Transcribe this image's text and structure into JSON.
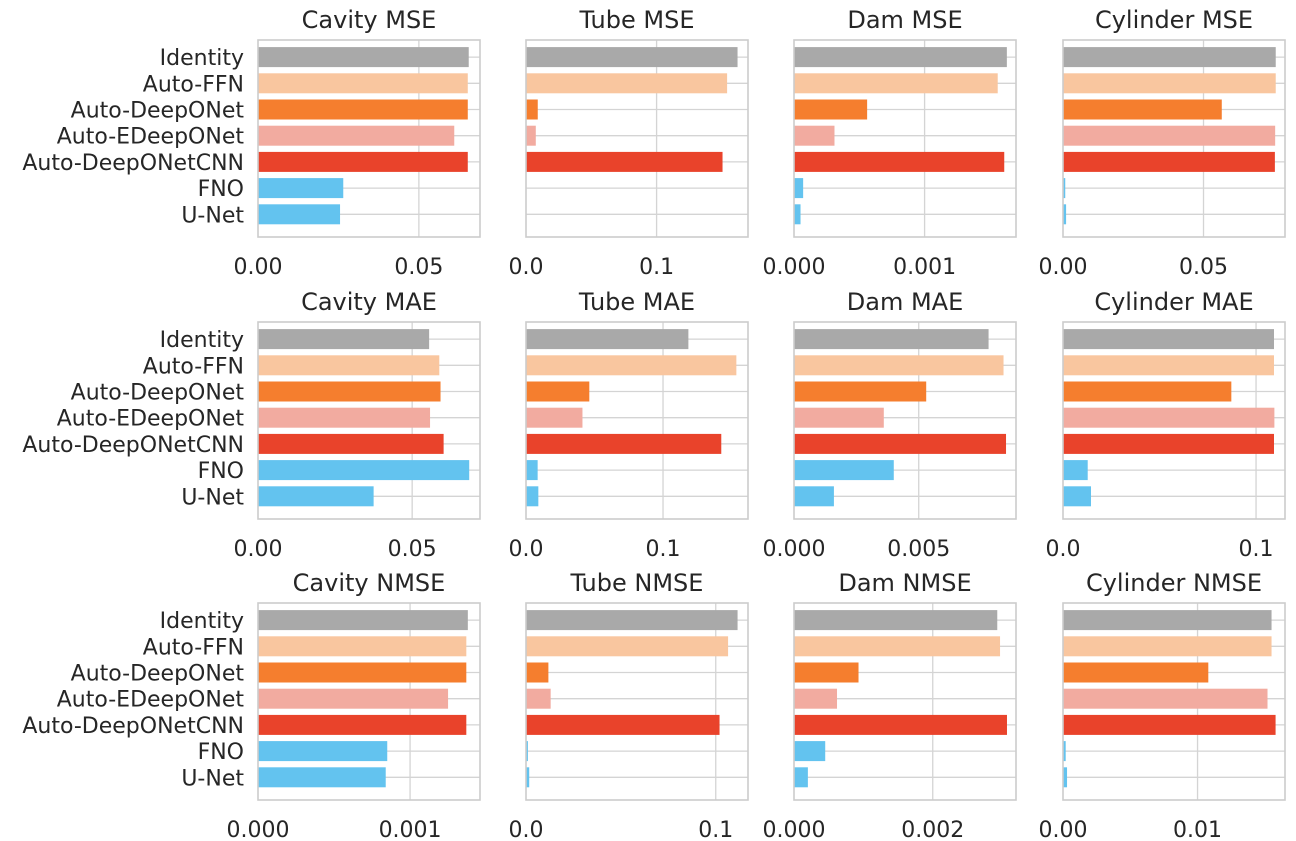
{
  "colors": {
    "Identity": "#a9a9a9",
    "Auto-FFN": "#f9c69f",
    "Auto-DeepONet": "#f57e2e",
    "Auto-EDeepONet": "#f2aba0",
    "Auto-DeepONetCNN": "#e9432b",
    "FNO": "#63c3ef",
    "U-Net": "#63c3ef"
  },
  "chart_data": [
    {
      "type": "bar",
      "orientation": "horizontal",
      "title": "Cavity MSE",
      "categories": [
        "Identity",
        "Auto-FFN",
        "Auto-DeepONet",
        "Auto-EDeepONet",
        "Auto-DeepONetCNN",
        "FNO",
        "U-Net"
      ],
      "values": [
        0.0655,
        0.0652,
        0.0652,
        0.061,
        0.0652,
        0.0265,
        0.0255
      ],
      "xlim": [
        0,
        0.069
      ],
      "xticks": [
        0,
        0.05
      ],
      "xticklabels": [
        "0.00",
        "0.05"
      ],
      "grid": true
    },
    {
      "type": "bar",
      "orientation": "horizontal",
      "title": "Tube MSE",
      "categories": [
        "Identity",
        "Auto-FFN",
        "Auto-DeepONet",
        "Auto-EDeepONet",
        "Auto-DeepONetCNN",
        "FNO",
        "U-Net"
      ],
      "values": [
        0.162,
        0.154,
        0.009,
        0.0075,
        0.1505,
        0,
        0
      ],
      "xlim": [
        0,
        0.17
      ],
      "xticks": [
        0,
        0.1
      ],
      "xticklabels": [
        "0.0",
        "0.1"
      ],
      "grid": true
    },
    {
      "type": "bar",
      "orientation": "horizontal",
      "title": "Dam MSE",
      "categories": [
        "Identity",
        "Auto-FFN",
        "Auto-DeepONet",
        "Auto-EDeepONet",
        "Auto-DeepONetCNN",
        "FNO",
        "U-Net"
      ],
      "values": [
        0.00163,
        0.00156,
        0.00056,
        0.00031,
        0.00161,
        7e-05,
        5e-05
      ],
      "xlim": [
        0,
        0.0017
      ],
      "xticks": [
        0,
        0.001
      ],
      "xticklabels": [
        "0.000",
        "0.001"
      ],
      "grid": true
    },
    {
      "type": "bar",
      "orientation": "horizontal",
      "title": "Cylinder MSE",
      "categories": [
        "Identity",
        "Auto-FFN",
        "Auto-DeepONet",
        "Auto-EDeepONet",
        "Auto-DeepONetCNN",
        "FNO",
        "U-Net"
      ],
      "values": [
        0.0757,
        0.0757,
        0.0565,
        0.0755,
        0.0754,
        0.0008,
        0.0011
      ],
      "xlim": [
        0,
        0.079
      ],
      "xticks": [
        0,
        0.05
      ],
      "xticklabels": [
        "0.00",
        "0.05"
      ],
      "grid": true
    },
    {
      "type": "bar",
      "orientation": "horizontal",
      "title": "Cavity MAE",
      "categories": [
        "Identity",
        "Auto-FFN",
        "Auto-DeepONet",
        "Auto-EDeepONet",
        "Auto-DeepONetCNN",
        "FNO",
        "U-Net"
      ],
      "values": [
        0.0555,
        0.0588,
        0.0592,
        0.0558,
        0.0602,
        0.0685,
        0.0375
      ],
      "xlim": [
        0,
        0.072
      ],
      "xticks": [
        0,
        0.05
      ],
      "xticklabels": [
        "0.00",
        "0.05"
      ],
      "grid": true
    },
    {
      "type": "bar",
      "orientation": "horizontal",
      "title": "Tube MAE",
      "categories": [
        "Identity",
        "Auto-FFN",
        "Auto-DeepONet",
        "Auto-EDeepONet",
        "Auto-DeepONetCNN",
        "FNO",
        "U-Net"
      ],
      "values": [
        0.1185,
        0.1535,
        0.0462,
        0.0412,
        0.1425,
        0.0085,
        0.009
      ],
      "xlim": [
        0,
        0.162
      ],
      "xticks": [
        0,
        0.1
      ],
      "xticklabels": [
        "0.0",
        "0.1"
      ],
      "grid": true
    },
    {
      "type": "bar",
      "orientation": "horizontal",
      "title": "Dam MAE",
      "categories": [
        "Identity",
        "Auto-FFN",
        "Auto-DeepONet",
        "Auto-EDeepONet",
        "Auto-DeepONetCNN",
        "FNO",
        "U-Net"
      ],
      "values": [
        0.0078,
        0.0084,
        0.0053,
        0.0036,
        0.0085,
        0.004,
        0.0016
      ],
      "xlim": [
        0,
        0.0089
      ],
      "xticks": [
        0,
        0.005
      ],
      "xticklabels": [
        "0.000",
        "0.005"
      ],
      "grid": true
    },
    {
      "type": "bar",
      "orientation": "horizontal",
      "title": "Cylinder MAE",
      "categories": [
        "Identity",
        "Auto-FFN",
        "Auto-DeepONet",
        "Auto-EDeepONet",
        "Auto-DeepONetCNN",
        "FNO",
        "U-Net"
      ],
      "values": [
        0.1093,
        0.1093,
        0.0872,
        0.1095,
        0.1093,
        0.0128,
        0.0145
      ],
      "xlim": [
        0,
        0.115
      ],
      "xticks": [
        0,
        0.1
      ],
      "xticklabels": [
        "0.0",
        "0.1"
      ],
      "grid": true
    },
    {
      "type": "bar",
      "orientation": "horizontal",
      "title": "Cavity NMSE",
      "categories": [
        "Identity",
        "Auto-FFN",
        "Auto-DeepONet",
        "Auto-EDeepONet",
        "Auto-DeepONetCNN",
        "FNO",
        "U-Net"
      ],
      "values": [
        0.00138,
        0.00137,
        0.00137,
        0.00125,
        0.00137,
        0.00085,
        0.00084
      ],
      "xlim": [
        0,
        0.00146
      ],
      "xticks": [
        0,
        0.001
      ],
      "xticklabels": [
        "0.000",
        "0.001"
      ],
      "grid": true
    },
    {
      "type": "bar",
      "orientation": "horizontal",
      "title": "Tube NMSE",
      "categories": [
        "Identity",
        "Auto-FFN",
        "Auto-DeepONet",
        "Auto-EDeepONet",
        "Auto-DeepONetCNN",
        "FNO",
        "U-Net"
      ],
      "values": [
        0.1115,
        0.1065,
        0.0118,
        0.013,
        0.102,
        0.001,
        0.0017
      ],
      "xlim": [
        0,
        0.117
      ],
      "xticks": [
        0,
        0.1
      ],
      "xticklabels": [
        "0.0",
        "0.1"
      ],
      "grid": true
    },
    {
      "type": "bar",
      "orientation": "horizontal",
      "title": "Dam NMSE",
      "categories": [
        "Identity",
        "Auto-FFN",
        "Auto-DeepONet",
        "Auto-EDeepONet",
        "Auto-DeepONetCNN",
        "FNO",
        "U-Net"
      ],
      "values": [
        0.00293,
        0.00297,
        0.00093,
        0.00062,
        0.00307,
        0.00045,
        0.0002
      ],
      "xlim": [
        0,
        0.0032
      ],
      "xticks": [
        0,
        0.002
      ],
      "xticklabels": [
        "0.000",
        "0.002"
      ],
      "grid": true
    },
    {
      "type": "bar",
      "orientation": "horizontal",
      "title": "Cylinder NMSE",
      "categories": [
        "Identity",
        "Auto-FFN",
        "Auto-DeepONet",
        "Auto-EDeepONet",
        "Auto-DeepONetCNN",
        "FNO",
        "U-Net"
      ],
      "values": [
        0.0155,
        0.0155,
        0.0108,
        0.0152,
        0.0158,
        0.0002,
        0.0003
      ],
      "xlim": [
        0,
        0.0165
      ],
      "xticks": [
        0,
        0.01
      ],
      "xticklabels": [
        "0.00",
        "0.01"
      ],
      "grid": true
    }
  ]
}
